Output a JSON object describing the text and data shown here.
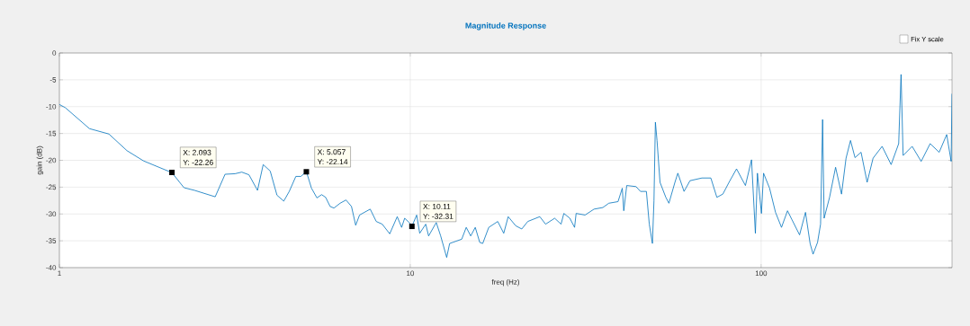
{
  "chart_data": {
    "type": "line",
    "title": "Magnitude Response",
    "xlabel": "freq (Hz)",
    "ylabel": "gain (dB)",
    "log": "x",
    "grid": true,
    "marker": "none",
    "line_style": "solid",
    "color": "#0072bd",
    "xlim": [
      1,
      350
    ],
    "ylim": [
      -40,
      0
    ],
    "xticks": [
      1,
      10,
      100
    ],
    "yticks": [
      -40,
      -35,
      -30,
      -25,
      -20,
      -15,
      -10,
      -5,
      0
    ],
    "annotations": [
      "Fix Y scale",
      {
        "text": "X: 2.093",
        "x": 2.093,
        "y": -22.26
      },
      {
        "text": "Y: -22.26",
        "x": 2.093,
        "y": -22.26
      },
      {
        "text": "X: 5.057",
        "x": 5.057,
        "y": -22.14
      },
      {
        "text": "Y: -22.14",
        "x": 5.057,
        "y": -22.14
      },
      {
        "text": "X: 10.11",
        "x": 10.11,
        "y": -32.31
      },
      {
        "text": "Y: -32.31",
        "x": 10.11,
        "y": -32.31
      }
    ],
    "x": [
      1,
      1.04,
      1.218,
      1.384,
      1.558,
      1.736,
      2.093,
      2.265,
      2.428,
      2.78,
      2.966,
      3.166,
      3.31,
      3.47,
      3.67,
      3.81,
      3.99,
      4.17,
      4.36,
      4.52,
      4.72,
      4.88,
      5.057,
      5.23,
      5.42,
      5.59,
      5.74,
      5.91,
      6.06,
      6.31,
      6.56,
      6.8,
      6.99,
      7.17,
      7.69,
      8.0,
      8.32,
      8.74,
      9.18,
      9.45,
      9.64,
      9.93,
      10.11,
      10.43,
      10.64,
      11.07,
      11.28,
      11.86,
      12.21,
      12.7,
      12.95,
      13.21,
      14.02,
      14.44,
      14.87,
      15.32,
      15.78,
      16.09,
      16.74,
      17.76,
      18.47,
      19.02,
      19.98,
      20.79,
      21.62,
      23.4,
      24.3,
      25.8,
      26.9,
      27.4,
      28.5,
      29.4,
      29.7,
      31.5,
      33.4,
      35.4,
      36.8,
      39.1,
      40.2,
      40.6,
      41.4,
      44.0,
      45.3,
      47.1,
      48.0,
      49.0,
      49.5,
      49.96,
      50.5,
      51.5,
      53.5,
      54.6,
      56.8,
      57.9,
      60.3,
      62.7,
      67.8,
      71.9,
      74.8,
      77.8,
      81.0,
      85.1,
      90.2,
      93.9,
      96.3,
      97.6,
      100.2,
      101.6,
      105.7,
      109.9,
      114.3,
      118.9,
      122.5,
      128.7,
      133.8,
      137.9,
      140.6,
      144.8,
      147.7,
      149.7,
      151.2,
      156.7,
      163.0,
      169.5,
      174.6,
      179.8,
      185.2,
      192.7,
      200.5,
      208.5,
      221.2,
      234.7,
      246.6,
      250.5,
      253.9,
      269.4,
      285.8,
      303.2,
      321.7,
      338.0,
      348.0,
      349.9
    ],
    "values": [
      -9.6,
      -10.2,
      -14.1,
      -15.1,
      -18.2,
      -20.1,
      -22.3,
      -25.1,
      -25.6,
      -26.8,
      -22.6,
      -22.5,
      -22.2,
      -22.7,
      -25.6,
      -20.8,
      -22.0,
      -26.5,
      -27.6,
      -25.8,
      -23.0,
      -23.0,
      -22.1,
      -25.2,
      -27.0,
      -26.4,
      -26.9,
      -28.6,
      -28.9,
      -28.0,
      -27.4,
      -28.6,
      -32.1,
      -30.2,
      -29.1,
      -31.4,
      -31.9,
      -33.7,
      -30.5,
      -32.5,
      -30.8,
      -31.6,
      -32.3,
      -30.2,
      -33.6,
      -31.9,
      -34.1,
      -31.6,
      -34.1,
      -38.1,
      -35.5,
      -35.3,
      -34.7,
      -32.5,
      -34.1,
      -32.5,
      -35.3,
      -35.5,
      -32.5,
      -31.4,
      -33.6,
      -30.5,
      -32.2,
      -32.8,
      -31.4,
      -30.5,
      -31.9,
      -30.8,
      -31.9,
      -29.9,
      -30.8,
      -32.5,
      -29.9,
      -30.2,
      -29.1,
      -28.8,
      -28.0,
      -27.7,
      -25.2,
      -29.4,
      -24.7,
      -24.9,
      -25.8,
      -25.8,
      -31.9,
      -35.5,
      -27.5,
      -12.9,
      -16.3,
      -24.1,
      -26.9,
      -28.0,
      -24.1,
      -22.4,
      -25.8,
      -23.8,
      -23.3,
      -23.3,
      -26.9,
      -26.3,
      -24.1,
      -21.6,
      -24.7,
      -19.9,
      -33.6,
      -22.4,
      -29.9,
      -22.4,
      -25.2,
      -29.7,
      -32.5,
      -29.4,
      -31.1,
      -33.9,
      -29.7,
      -35.5,
      -37.5,
      -35.3,
      -31.9,
      -12.4,
      -30.8,
      -26.9,
      -21.3,
      -26.3,
      -19.6,
      -16.3,
      -19.5,
      -18.5,
      -24.1,
      -19.6,
      -17.4,
      -20.8,
      -16.9,
      -4.0,
      -19.1,
      -17.4,
      -20.2,
      -16.9,
      -18.5,
      -15.2,
      -20.2,
      -7.6
    ]
  }
}
